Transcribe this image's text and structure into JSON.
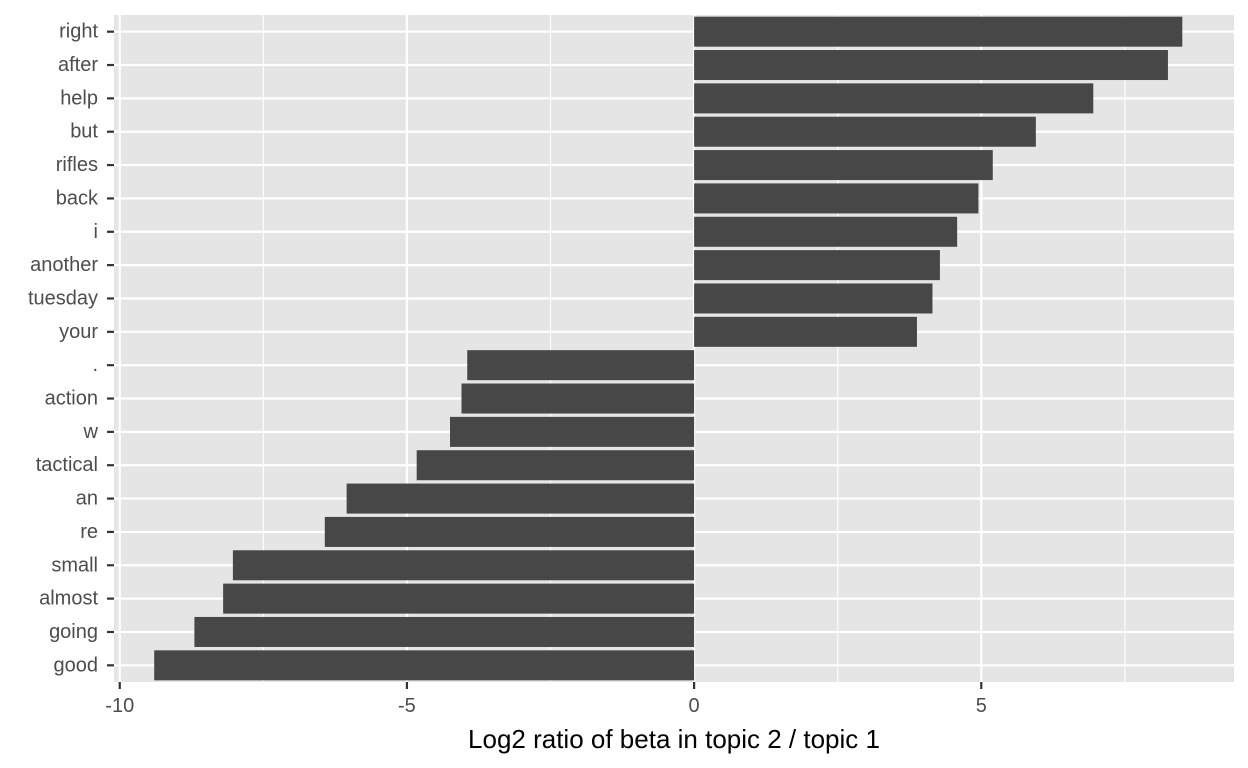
{
  "chart_data": {
    "type": "bar",
    "orientation": "horizontal",
    "categories": [
      "right",
      "after",
      "help",
      "but",
      "rifles",
      "back",
      "i",
      "another",
      "tuesday",
      "your",
      ".",
      "action",
      "w",
      "tactical",
      "an",
      "re",
      "small",
      "almost",
      "going",
      "good"
    ],
    "values": [
      8.5,
      8.25,
      6.95,
      5.95,
      5.2,
      4.95,
      4.58,
      4.28,
      4.15,
      3.88,
      -3.95,
      -4.05,
      -4.25,
      -4.83,
      -6.05,
      -6.43,
      -8.03,
      -8.2,
      -8.7,
      -9.4
    ],
    "xlabel": "Log2 ratio of beta in topic 2 / topic 1",
    "ylabel": "",
    "title": "",
    "xlim": [
      -10.1,
      9.4
    ],
    "x_ticks": [
      -10,
      -5,
      0,
      5
    ],
    "x_tick_labels": [
      "-10",
      "-5",
      "0",
      "5"
    ],
    "grid": true,
    "legend": "none",
    "colors": {
      "panel_background": "#e5e5e5",
      "grid_line": "#ffffff",
      "bar_fill": "#474747",
      "tick_text": "#4d4d4d",
      "tick_mark": "#333333",
      "axis_title": "#000000"
    }
  }
}
